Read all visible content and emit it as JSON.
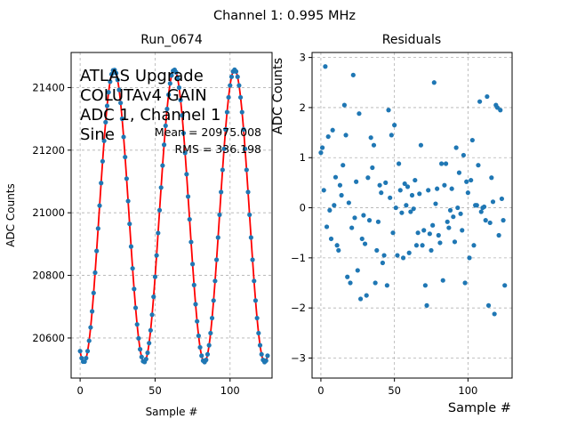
{
  "suptitle": "Channel 1: 0.995 MHz",
  "colors": {
    "data": "#1f77b4",
    "fit": "#ff0000",
    "grid": "#b0b0b0"
  },
  "chart_data": [
    {
      "type": "scatter",
      "title": "Run_0674",
      "xlabel": "Sample #",
      "ylabel": "ADC Counts",
      "xlim": [
        -6,
        128
      ],
      "ylim": [
        20472,
        20512.5
      ],
      "ylim_note": "",
      "xticks": [
        0,
        50,
        100
      ],
      "yticks": [
        20600,
        20800,
        21000,
        21200,
        21400
      ],
      "grid": true,
      "annotation_lines": [
        "ATLAS Upgrade",
        "COLUTAv4 GAIN",
        "ADC 1, Channel 1",
        "Sine"
      ],
      "stats": [
        "Mean = 20975.008",
        "RMS = 336.198"
      ],
      "series": [
        {
          "kind": "points",
          "x": [
            0,
            1,
            2,
            3,
            4,
            5,
            6,
            7,
            8,
            9,
            10,
            11,
            12,
            13,
            14,
            15,
            16,
            17,
            18,
            19,
            20,
            21,
            22,
            23,
            24,
            25,
            26,
            27,
            28,
            29,
            30,
            31,
            32,
            33,
            34,
            35,
            36,
            37,
            38,
            39,
            40,
            41,
            42,
            43,
            44,
            45,
            46,
            47,
            48,
            49,
            50,
            51,
            52,
            53,
            54,
            55,
            56,
            57,
            58,
            59,
            60,
            61,
            62,
            63,
            64,
            65,
            66,
            67,
            68,
            69,
            70,
            71,
            72,
            73,
            74,
            75,
            76,
            77,
            78,
            79,
            80,
            81,
            82,
            83,
            84,
            85,
            86,
            87,
            88,
            89,
            90,
            91,
            92,
            93,
            94,
            95,
            96,
            97,
            98,
            99,
            100,
            101,
            102,
            103,
            104,
            105,
            106,
            107,
            108,
            109,
            110,
            111,
            112,
            113,
            114,
            115,
            116,
            117,
            118,
            119,
            120,
            121,
            122,
            123,
            124,
            125
          ],
          "y": [
            20582,
            20551,
            20530,
            20523,
            20533,
            20557,
            20596,
            20647,
            20710,
            20783,
            20862,
            20946,
            21030,
            21113,
            21190,
            21260,
            21321,
            21369,
            21408,
            21436,
            21452,
            21456,
            21451,
            21437,
            21411,
            21371,
            21318,
            21251,
            21171,
            21082,
            20988,
            20897,
            20812,
            20730,
            20656,
            20596,
            20557,
            20533,
            20523,
            20530,
            20551,
            20582,
            20551,
            20530,
            20523,
            20533,
            20557,
            20596,
            20647,
            20710,
            20783,
            20862,
            20946,
            21030,
            21113,
            21190,
            21260,
            21321,
            21369,
            21408,
            21436,
            21452,
            21456,
            21451,
            21437,
            21411,
            21371,
            21318,
            21251,
            21171,
            21082,
            20988,
            20897,
            20812,
            20730,
            20656,
            20596,
            20557,
            20533,
            20523,
            20530,
            20551,
            20582,
            20551,
            20530,
            20523,
            20533,
            20557,
            20596,
            20647,
            20710,
            20783,
            20862,
            20946,
            21030,
            21113,
            21190,
            21260,
            21321,
            21369,
            21408,
            21436,
            21452,
            21456,
            21451,
            21437,
            21411,
            21371,
            21318,
            21251,
            21171,
            21082,
            20988,
            20897,
            20812,
            20730,
            20656,
            20596,
            20557,
            20533,
            20523,
            20530,
            20551,
            20582,
            20551,
            20530
          ]
        },
        {
          "kind": "fit-line",
          "amplitude": 467,
          "offset": 20990,
          "period": 40.2,
          "phase_sample": 22.6
        }
      ]
    },
    {
      "type": "scatter",
      "title": "Residuals",
      "xlabel": "Sample #",
      "ylabel": "ADC Counts",
      "xlim": [
        -6,
        130
      ],
      "ylim": [
        -3.4,
        3.1
      ],
      "xticks": [
        0,
        50,
        100
      ],
      "yticks": [
        -3,
        -2,
        -1,
        0,
        1,
        2,
        3
      ],
      "grid": true,
      "x": [
        0,
        1,
        2,
        3,
        4,
        5,
        6,
        7,
        8,
        9,
        10,
        11,
        12,
        13,
        14,
        15,
        16,
        17,
        18,
        19,
        20,
        21,
        22,
        23,
        24,
        25,
        26,
        27,
        28,
        29,
        30,
        31,
        32,
        33,
        34,
        35,
        36,
        37,
        38,
        39,
        40,
        41,
        42,
        43,
        44,
        45,
        46,
        47,
        48,
        49,
        50,
        51,
        52,
        53,
        54,
        55,
        56,
        57,
        58,
        59,
        60,
        61,
        62,
        63,
        64,
        65,
        66,
        67,
        68,
        69,
        70,
        71,
        72,
        73,
        74,
        75,
        76,
        77,
        78,
        79,
        80,
        81,
        82,
        83,
        84,
        85,
        86,
        87,
        88,
        89,
        90,
        91,
        92,
        93,
        94,
        95,
        96,
        97,
        98,
        99,
        100,
        101,
        102,
        103,
        104,
        105,
        106,
        107,
        108,
        109,
        110,
        111,
        112,
        113,
        114,
        115,
        116,
        117,
        118,
        119,
        120,
        121,
        122,
        123,
        124,
        125
      ],
      "y": [
        1.1,
        1.2,
        0.35,
        2.82,
        -0.38,
        1.42,
        -0.05,
        -0.62,
        1.55,
        0.05,
        0.61,
        -0.75,
        -0.85,
        0.45,
        0.25,
        0.85,
        2.05,
        1.45,
        -1.38,
        0.1,
        -1.5,
        -0.4,
        2.65,
        -0.2,
        0.52,
        -1.25,
        1.88,
        -1.82,
        -0.62,
        -0.15,
        -0.72,
        -1.75,
        0.6,
        -0.25,
        1.4,
        0.8,
        1.25,
        -1.5,
        -0.85,
        -0.28,
        0.45,
        0.3,
        -1.1,
        -0.95,
        0.5,
        -1.55,
        1.95,
        0.2,
        1.45,
        -0.5,
        1.65,
        0.0,
        -0.95,
        0.88,
        0.35,
        -0.1,
        -1.0,
        0.48,
        0.05,
        0.42,
        -0.9,
        -0.08,
        0.25,
        -0.02,
        0.55,
        -0.75,
        -0.5,
        0.28,
        1.25,
        -0.75,
        -0.45,
        -1.55,
        -1.95,
        0.35,
        -0.52,
        -0.85,
        -0.35,
        2.5,
        0.08,
        0.38,
        -0.55,
        -0.7,
        0.88,
        -1.45,
        0.45,
        0.88,
        -0.28,
        -0.4,
        -0.05,
        0.38,
        -0.18,
        -0.68,
        1.2,
        0.0,
        0.7,
        -0.12,
        -0.45,
        1.05,
        -1.5,
        0.52,
        0.3,
        -1.0,
        0.55,
        1.35,
        -0.75,
        0.05,
        0.05,
        0.85,
        2.12,
        -0.08,
        0.0,
        0.02,
        -0.25,
        2.22,
        -1.95,
        -0.3,
        0.6,
        0.12,
        -2.12,
        2.05,
        2.0,
        -0.55,
        1.95,
        0.18,
        -0.25,
        -1.55
      ]
    }
  ]
}
